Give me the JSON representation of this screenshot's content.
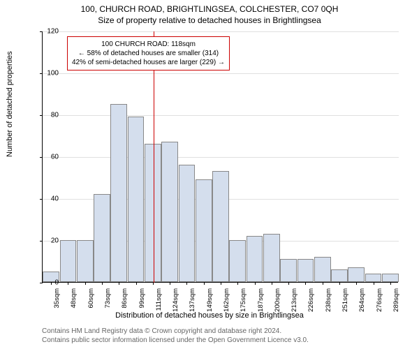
{
  "chart": {
    "type": "histogram",
    "title_main": "100, CHURCH ROAD, BRIGHTLINGSEA, COLCHESTER, CO7 0QH",
    "title_sub": "Size of property relative to detached houses in Brightlingsea",
    "y_label": "Number of detached properties",
    "x_label": "Distribution of detached houses by size in Brightlingsea",
    "background_color": "#ffffff",
    "grid_color": "#e0e0e0",
    "bar_fill": "#d4deed",
    "bar_border": "#888888",
    "marker_color": "#cc0000",
    "ylim": [
      0,
      120
    ],
    "ytick_step": 20,
    "yticks": [
      0,
      20,
      40,
      60,
      80,
      100,
      120
    ],
    "x_categories": [
      "35sqm",
      "48sqm",
      "60sqm",
      "73sqm",
      "86sqm",
      "99sqm",
      "111sqm",
      "124sqm",
      "137sqm",
      "149sqm",
      "162sqm",
      "175sqm",
      "187sqm",
      "200sqm",
      "213sqm",
      "226sqm",
      "238sqm",
      "251sqm",
      "264sqm",
      "276sqm",
      "289sqm"
    ],
    "values": [
      5,
      20,
      20,
      42,
      85,
      79,
      66,
      67,
      56,
      49,
      53,
      20,
      22,
      23,
      11,
      11,
      12,
      6,
      7,
      4,
      4
    ],
    "marker_index": 7,
    "annotation": {
      "line1": "100 CHURCH ROAD: 118sqm",
      "line2": "← 58% of detached houses are smaller (314)",
      "line3": "42% of semi-detached houses are larger (229) →"
    },
    "attribution_line1": "Contains HM Land Registry data © Crown copyright and database right 2024.",
    "attribution_line2": "Contains public sector information licensed under the Open Government Licence v3.0.",
    "title_fontsize": 12,
    "label_fontsize": 11,
    "tick_fontsize": 10,
    "annotation_fontsize": 10
  }
}
